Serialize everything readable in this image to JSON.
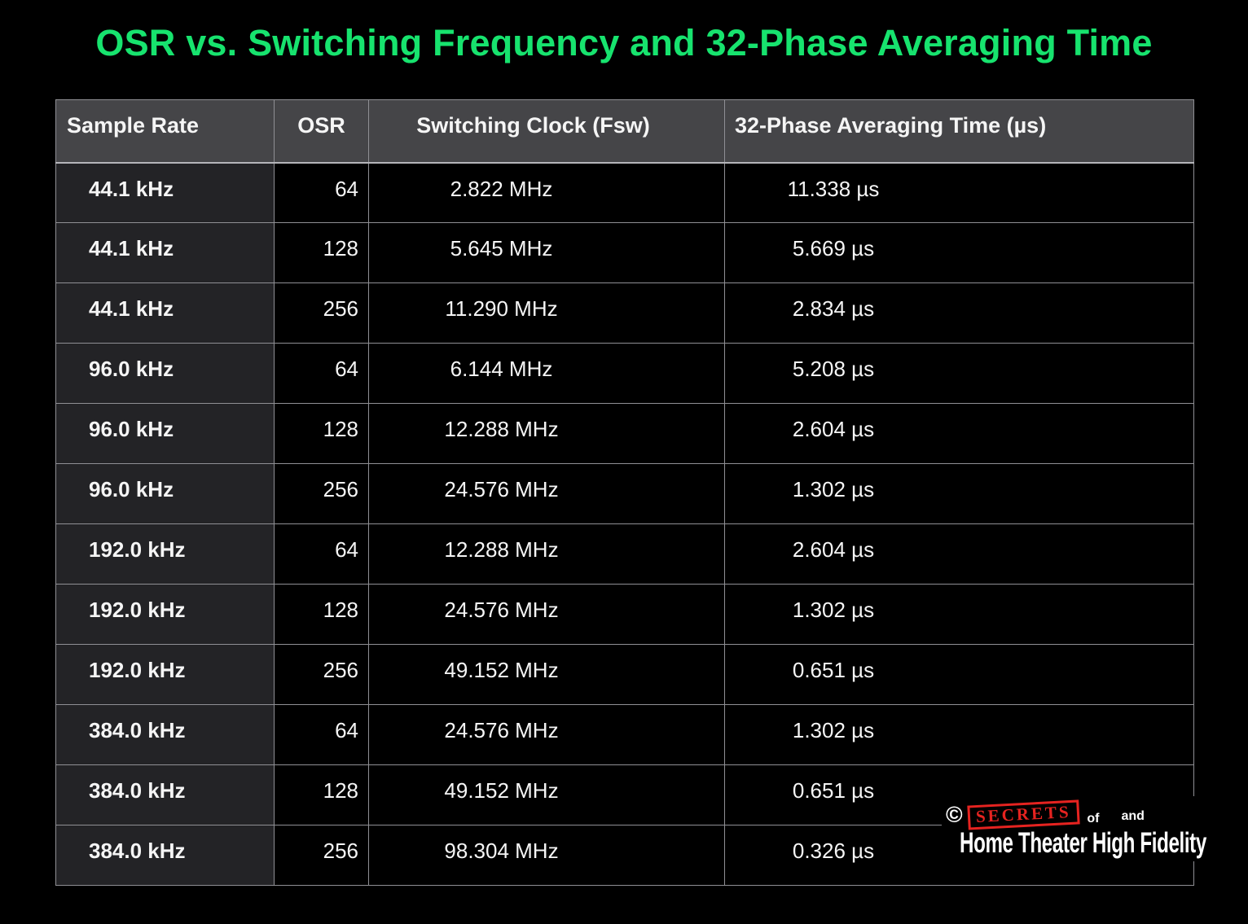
{
  "chart_data": {
    "type": "table",
    "title": "OSR vs. Switching Frequency and 32-Phase Averaging Time",
    "columns": [
      "Sample Rate",
      "OSR",
      "Switching Clock (Fsw)",
      "32-Phase Averaging Time (µs)"
    ],
    "rows": [
      [
        "44.1 kHz",
        "64",
        "2.822 MHz",
        "11.338 µs"
      ],
      [
        "44.1 kHz",
        "128",
        "5.645 MHz",
        "5.669 µs"
      ],
      [
        "44.1 kHz",
        "256",
        "11.290 MHz",
        "2.834 µs"
      ],
      [
        "96.0 kHz",
        "64",
        "6.144 MHz",
        "5.208 µs"
      ],
      [
        "96.0 kHz",
        "128",
        "12.288 MHz",
        "2.604 µs"
      ],
      [
        "96.0 kHz",
        "256",
        "24.576 MHz",
        "1.302 µs"
      ],
      [
        "192.0 kHz",
        "64",
        "12.288 MHz",
        "2.604 µs"
      ],
      [
        "192.0 kHz",
        "128",
        "24.576 MHz",
        "1.302 µs"
      ],
      [
        "192.0 kHz",
        "256",
        "49.152 MHz",
        "0.651 µs"
      ],
      [
        "384.0 kHz",
        "64",
        "24.576 MHz",
        "1.302 µs"
      ],
      [
        "384.0 kHz",
        "128",
        "49.152 MHz",
        "0.651 µs"
      ],
      [
        "384.0 kHz",
        "256",
        "98.304 MHz",
        "0.326 µs"
      ]
    ],
    "legend_position": "none",
    "grid": true
  },
  "logo": {
    "copyright": "©",
    "secrets": "SECRETS",
    "of": "of",
    "and": "and",
    "line2": "Home Theater High Fidelity"
  },
  "colors": {
    "title_green": "#17e36e",
    "header_bg": "#454548",
    "row_label_bg": "#232326",
    "cell_bg": "#000000",
    "grid_border": "#8f8f94",
    "text": "#f5f5f5",
    "logo_red": "#e62320"
  }
}
